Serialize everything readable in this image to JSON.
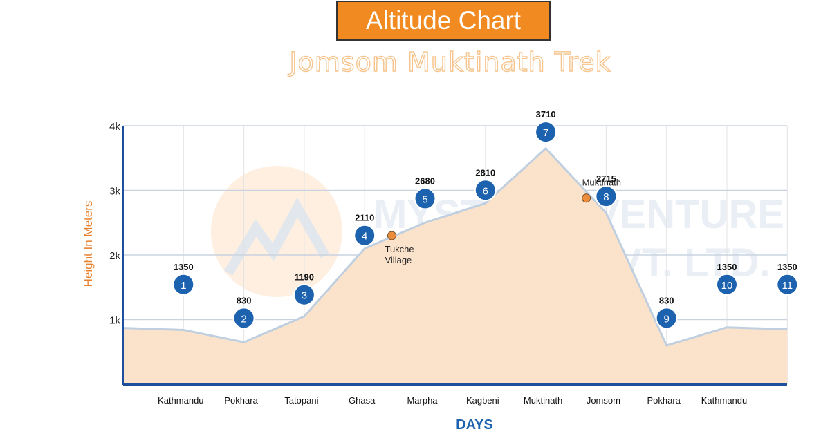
{
  "title": "Altitude Chart",
  "subtitle": "Jomsom Muktinath Trek",
  "watermark": {
    "line1": "MYSTIC ADVENTURE",
    "line2": "HOLIDAYS PVT. LTD."
  },
  "colors": {
    "title_bg": "#f18a21",
    "area_fill": "#fbe3cb",
    "area_line": "#bfcfe0",
    "marker": "#1c62ae",
    "side_point": "#ec8d3b",
    "ylabel": "#e8822f",
    "xlabel": "#1c62ae",
    "axis": "#1f4e9c"
  },
  "chart_data": {
    "type": "area",
    "xlabel": "DAYS",
    "ylabel": "Height In Meters",
    "ylim": [
      0,
      4000
    ],
    "yticks": [
      {
        "value": 1000,
        "label": "1k"
      },
      {
        "value": 2000,
        "label": "2k"
      },
      {
        "value": 3000,
        "label": "3k"
      },
      {
        "value": 4000,
        "label": "4k"
      }
    ],
    "grid": true,
    "days": [
      {
        "day": "1",
        "place": "Kathmandu",
        "altitude": 1350,
        "label": "1350"
      },
      {
        "day": "2",
        "place": "Pokhara",
        "altitude": 830,
        "label": "830"
      },
      {
        "day": "3",
        "place": "Tatopani",
        "altitude": 1190,
        "label": "1190"
      },
      {
        "day": "4",
        "place": "Ghasa",
        "altitude": 2110,
        "label": "2110"
      },
      {
        "day": "5",
        "place": "Marpha",
        "altitude": 2680,
        "label": "2680"
      },
      {
        "day": "6",
        "place": "Kagbeni",
        "altitude": 2810,
        "label": "2810"
      },
      {
        "day": "7",
        "place": "Muktinath",
        "altitude": 3710,
        "label": "3710"
      },
      {
        "day": "8",
        "place": "Jomsom",
        "altitude": 2715,
        "label": "2715"
      },
      {
        "day": "9",
        "place": "Pokhara",
        "altitude": 830,
        "label": "830"
      },
      {
        "day": "10",
        "place": "Kathmandu",
        "altitude": 1350,
        "label": "1350"
      },
      {
        "day": "11",
        "place": "",
        "altitude": 1350,
        "label": "1350"
      }
    ],
    "area_profile": [
      {
        "x": 0.0,
        "altitude": 870
      },
      {
        "x": 1.0,
        "altitude": 840
      },
      {
        "x": 2.0,
        "altitude": 650
      },
      {
        "x": 3.0,
        "altitude": 1050
      },
      {
        "x": 4.0,
        "altitude": 2100
      },
      {
        "x": 5.0,
        "altitude": 2500
      },
      {
        "x": 6.0,
        "altitude": 2800
      },
      {
        "x": 7.0,
        "altitude": 3650
      },
      {
        "x": 8.0,
        "altitude": 2650
      },
      {
        "x": 9.0,
        "altitude": 600
      },
      {
        "x": 10.0,
        "altitude": 880
      },
      {
        "x": 11.0,
        "altitude": 850
      }
    ],
    "side_points": [
      {
        "name": "Tukche Village",
        "lines": [
          "Tukche",
          "Village"
        ],
        "x": 4.45,
        "altitude": 2300
      },
      {
        "name": "Muktinath",
        "lines": [
          "Muktinath"
        ],
        "x": 7.67,
        "altitude": 2880
      }
    ]
  }
}
